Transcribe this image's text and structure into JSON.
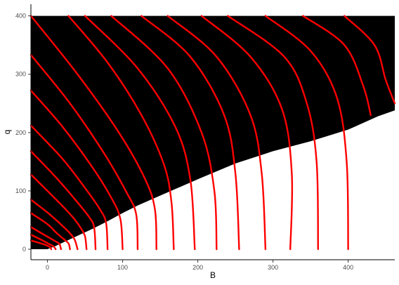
{
  "chart_data": {
    "type": "line",
    "title": "",
    "xlabel": "B",
    "ylabel": "q",
    "xlim": [
      -22,
      462
    ],
    "ylim": [
      -18,
      420
    ],
    "x_ticks": [
      0,
      100,
      200,
      300,
      400
    ],
    "y_ticks": [
      0,
      100,
      200,
      300,
      400
    ],
    "grid": false,
    "colors": {
      "background": "#ffffff",
      "region": "#000000",
      "curve": "#ff0000",
      "axis": "#000000",
      "tick_label": "#4d4d4d"
    },
    "shaded_region": {
      "description_values_only": true,
      "boundary": [
        [
          0,
          0
        ],
        [
          10,
          5
        ],
        [
          20,
          11
        ],
        [
          40,
          23
        ],
        [
          60,
          35
        ],
        [
          80,
          48
        ],
        [
          100,
          62
        ],
        [
          120,
          75
        ],
        [
          150,
          92
        ],
        [
          200,
          120
        ],
        [
          250,
          147
        ],
        [
          300,
          168
        ],
        [
          350,
          185
        ],
        [
          400,
          205
        ],
        [
          440,
          228
        ],
        [
          462,
          238
        ]
      ],
      "ymax": 400
    },
    "series": [
      {
        "points": [
          [
            -22,
            15
          ],
          [
            -6,
            9
          ],
          [
            0,
            6
          ],
          [
            4,
            3
          ],
          [
            5,
            0
          ]
        ]
      },
      {
        "points": [
          [
            -22,
            25
          ],
          [
            -8,
            16
          ],
          [
            2,
            9
          ],
          [
            8,
            5
          ],
          [
            11,
            0
          ]
        ]
      },
      {
        "points": [
          [
            -22,
            38
          ],
          [
            -2,
            23
          ],
          [
            10,
            14
          ],
          [
            16,
            9
          ],
          [
            18,
            0
          ]
        ]
      },
      {
        "points": [
          [
            -22,
            62
          ],
          [
            0,
            43
          ],
          [
            12,
            28
          ],
          [
            22,
            17
          ],
          [
            28,
            10
          ],
          [
            30,
            0
          ]
        ]
      },
      {
        "points": [
          [
            -22,
            85
          ],
          [
            0,
            63
          ],
          [
            15,
            46
          ],
          [
            28,
            30
          ],
          [
            36,
            17
          ],
          [
            40,
            0
          ]
        ]
      },
      {
        "points": [
          [
            -22,
            128
          ],
          [
            0,
            100
          ],
          [
            20,
            74
          ],
          [
            35,
            53
          ],
          [
            45,
            35
          ],
          [
            50,
            22
          ],
          [
            52,
            0
          ]
        ]
      },
      {
        "points": [
          [
            -22,
            168
          ],
          [
            10,
            125
          ],
          [
            35,
            88
          ],
          [
            55,
            56
          ],
          [
            62,
            38
          ],
          [
            64,
            0
          ]
        ]
      },
      {
        "points": [
          [
            -22,
            212
          ],
          [
            20,
            155
          ],
          [
            50,
            105
          ],
          [
            70,
            68
          ],
          [
            78,
            45
          ],
          [
            80,
            0
          ]
        ]
      },
      {
        "points": [
          [
            -22,
            272
          ],
          [
            20,
            210
          ],
          [
            60,
            140
          ],
          [
            85,
            88
          ],
          [
            97,
            52
          ],
          [
            100,
            0
          ]
        ]
      },
      {
        "points": [
          [
            -22,
            333
          ],
          [
            30,
            250
          ],
          [
            75,
            165
          ],
          [
            105,
            98
          ],
          [
            118,
            60
          ],
          [
            120,
            0
          ]
        ]
      },
      {
        "points": [
          [
            -22,
            400
          ],
          [
            40,
            300
          ],
          [
            95,
            200
          ],
          [
            130,
            120
          ],
          [
            143,
            68
          ],
          [
            145,
            0
          ]
        ]
      },
      {
        "points": [
          [
            28,
            400
          ],
          [
            80,
            320
          ],
          [
            125,
            230
          ],
          [
            155,
            145
          ],
          [
            165,
            80
          ],
          [
            168,
            0
          ]
        ]
      },
      {
        "points": [
          [
            50,
            400
          ],
          [
            120,
            310
          ],
          [
            170,
            210
          ],
          [
            190,
            120
          ],
          [
            196,
            0
          ]
        ]
      },
      {
        "points": [
          [
            85,
            400
          ],
          [
            160,
            310
          ],
          [
            205,
            200
          ],
          [
            222,
            100
          ],
          [
            225,
            0
          ]
        ]
      },
      {
        "points": [
          [
            125,
            400
          ],
          [
            190,
            330
          ],
          [
            235,
            230
          ],
          [
            250,
            130
          ],
          [
            255,
            0
          ]
        ]
      },
      {
        "points": [
          [
            160,
            400
          ],
          [
            225,
            330
          ],
          [
            270,
            230
          ],
          [
            285,
            130
          ],
          [
            290,
            0
          ]
        ]
      },
      {
        "points": [
          [
            205,
            400
          ],
          [
            270,
            330
          ],
          [
            312,
            240
          ],
          [
            325,
            130
          ],
          [
            323,
            0
          ]
        ]
      },
      {
        "points": [
          [
            240,
            400
          ],
          [
            315,
            330
          ],
          [
            345,
            250
          ],
          [
            358,
            150
          ],
          [
            360,
            0
          ]
        ]
      },
      {
        "points": [
          [
            290,
            400
          ],
          [
            350,
            340
          ],
          [
            385,
            260
          ],
          [
            398,
            150
          ],
          [
            400,
            0
          ]
        ]
      },
      {
        "points": [
          [
            340,
            400
          ],
          [
            395,
            350
          ],
          [
            420,
            280
          ],
          [
            430,
            230
          ]
        ]
      },
      {
        "points": [
          [
            395,
            400
          ],
          [
            435,
            350
          ],
          [
            450,
            290
          ],
          [
            462,
            250
          ]
        ]
      }
    ]
  }
}
